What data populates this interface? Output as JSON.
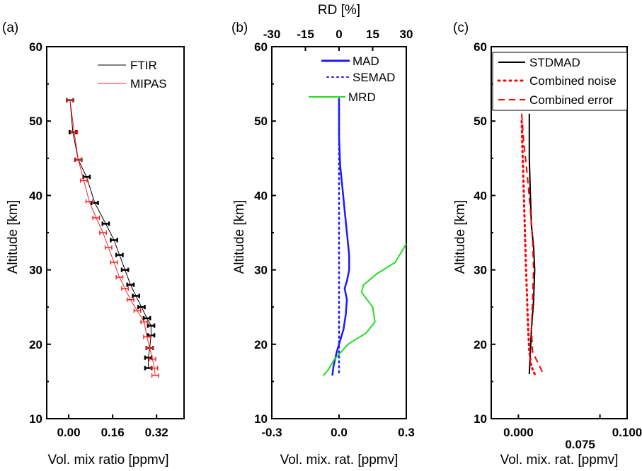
{
  "figure": {
    "panels": [
      {
        "tag": "(a)",
        "xlabel": "Vol. mix ratio [ppmv]",
        "ylabel": "Altitude [km]"
      },
      {
        "tag": "(b)",
        "xlabel": "Vol. mix. rat. [ppmv]",
        "ylabel": "Altitude [km]",
        "top_xlabel": "RD [%]"
      },
      {
        "tag": "(c)",
        "xlabel": "Vol. mix. rat. [ppmv]",
        "ylabel": "Altitude [km]"
      }
    ]
  },
  "chart_data": [
    {
      "type": "line",
      "tag": "(a)",
      "xlabel": "Vol. mix ratio [ppmv]",
      "ylabel": "Altitude [km]",
      "xlim": [
        -0.08,
        0.42
      ],
      "ylim": [
        10,
        60
      ],
      "xticks": [
        0.0,
        0.16,
        0.32
      ],
      "xtick_labels": [
        "0.00",
        "0.16",
        "0.32"
      ],
      "yticks": [
        10,
        20,
        30,
        40,
        50,
        60
      ],
      "legend_position": "top-right",
      "series": [
        {
          "name": "FTIR",
          "color": "#000000",
          "x": [
            0.005,
            0.015,
            0.035,
            0.065,
            0.095,
            0.135,
            0.165,
            0.185,
            0.205,
            0.225,
            0.245,
            0.265,
            0.285,
            0.3,
            0.3,
            0.295,
            0.29,
            0.29
          ],
          "y": [
            52.8,
            48.5,
            44.8,
            42.5,
            39.0,
            36.2,
            34.0,
            32.0,
            30.0,
            28.0,
            26.5,
            25.0,
            23.5,
            22.5,
            21.2,
            19.5,
            18.2,
            16.8
          ],
          "err": 0.012
        },
        {
          "name": "MIPAS",
          "color": "#ff2020",
          "x": [
            0.005,
            0.02,
            0.035,
            0.055,
            0.075,
            0.1,
            0.125,
            0.145,
            0.165,
            0.185,
            0.205,
            0.225,
            0.25,
            0.275,
            0.285,
            0.295,
            0.305,
            0.312,
            0.315
          ],
          "y": [
            52.8,
            48.5,
            44.8,
            42.0,
            39.2,
            37.0,
            35.0,
            33.0,
            31.0,
            29.0,
            27.5,
            26.0,
            24.5,
            23.0,
            21.0,
            19.5,
            18.0,
            16.8,
            15.8
          ],
          "err": 0.012
        }
      ]
    },
    {
      "type": "line",
      "tag": "(b)",
      "xlabel": "Vol. mix. rat. [ppmv]",
      "ylabel": "Altitude [km]",
      "top_xlabel": "RD [%]",
      "xlim": [
        -0.3,
        0.3
      ],
      "ylim": [
        10,
        60
      ],
      "xticks": [
        -0.3,
        0.0,
        0.3
      ],
      "xtick_labels": [
        "-0.3",
        "0.0",
        "0.3"
      ],
      "top_xlim": [
        -30,
        30
      ],
      "top_xticks": [
        -30,
        -15,
        0,
        15,
        30
      ],
      "yticks": [
        10,
        20,
        30,
        40,
        50,
        60
      ],
      "legend_position": "top-right",
      "series": [
        {
          "name": "MAD",
          "color": "#1a1aff",
          "style": "solid",
          "x": [
            0.0,
            0.0,
            0.005,
            0.015,
            0.025,
            0.035,
            0.045,
            0.045,
            0.035,
            0.025,
            0.035,
            0.03,
            0.02,
            0.005,
            -0.01,
            -0.025,
            -0.03
          ],
          "y": [
            53.0,
            48.0,
            44.0,
            41.0,
            38.0,
            35.0,
            32.0,
            30.0,
            28.5,
            27.5,
            26.0,
            24.0,
            22.0,
            20.5,
            19.0,
            17.0,
            15.8
          ]
        },
        {
          "name": "SEMAD",
          "color": "#1a1aff",
          "style": "dotted",
          "x": [
            0.0,
            0.0,
            0.0,
            0.0,
            0.0,
            0.0,
            0.0,
            0.0,
            0.0
          ],
          "y": [
            53.0,
            48.0,
            44.0,
            40.0,
            36.0,
            32.0,
            28.0,
            22.0,
            15.8
          ]
        },
        {
          "name": "MRD",
          "color": "#22dd22",
          "style": "solid",
          "axis": "top",
          "x": [
            30.0,
            25.0,
            17.0,
            11.0,
            10.0,
            15.0,
            16.0,
            12.0,
            4.0,
            -2.0,
            -5.0,
            -7.0
          ],
          "y": [
            33.5,
            31.0,
            29.5,
            28.0,
            27.0,
            25.0,
            23.0,
            21.5,
            20.0,
            18.0,
            16.5,
            15.8
          ]
        }
      ]
    },
    {
      "type": "line",
      "tag": "(c)",
      "xlabel": "Vol. mix. rat. [ppmv]",
      "ylabel": "Altitude [km]",
      "xlim": [
        -0.025,
        0.1
      ],
      "ylim": [
        10,
        60
      ],
      "xticks": [
        0.0,
        0.075,
        0.1
      ],
      "xtick_labels": [
        "0.000",
        "0.075",
        "0.100"
      ],
      "yticks": [
        10,
        20,
        30,
        40,
        50,
        60
      ],
      "legend_position": "top-right",
      "series": [
        {
          "name": "STDMAD",
          "color": "#000000",
          "style": "solid",
          "x": [
            0.01,
            0.01,
            0.011,
            0.012,
            0.014,
            0.015,
            0.014,
            0.012,
            0.011,
            0.01
          ],
          "y": [
            51.0,
            45.0,
            40.0,
            36.0,
            33.0,
            30.0,
            26.0,
            22.0,
            19.0,
            16.0
          ]
        },
        {
          "name": "Combined noise",
          "color": "#ff0000",
          "style": "dotted",
          "x": [
            0.003,
            0.004,
            0.005,
            0.006,
            0.007,
            0.008,
            0.009,
            0.01,
            0.012,
            0.015
          ],
          "y": [
            50.0,
            45.0,
            40.0,
            35.0,
            30.0,
            26.0,
            22.0,
            19.0,
            17.0,
            16.0
          ]
        },
        {
          "name": "Combined error",
          "color": "#ff0000",
          "style": "dashed",
          "x": [
            0.003,
            0.005,
            0.008,
            0.011,
            0.013,
            0.014,
            0.013,
            0.012,
            0.013,
            0.018,
            0.023
          ],
          "y": [
            51.0,
            47.0,
            43.0,
            38.0,
            34.0,
            30.0,
            26.0,
            22.0,
            19.0,
            17.5,
            16.0
          ]
        }
      ]
    }
  ]
}
